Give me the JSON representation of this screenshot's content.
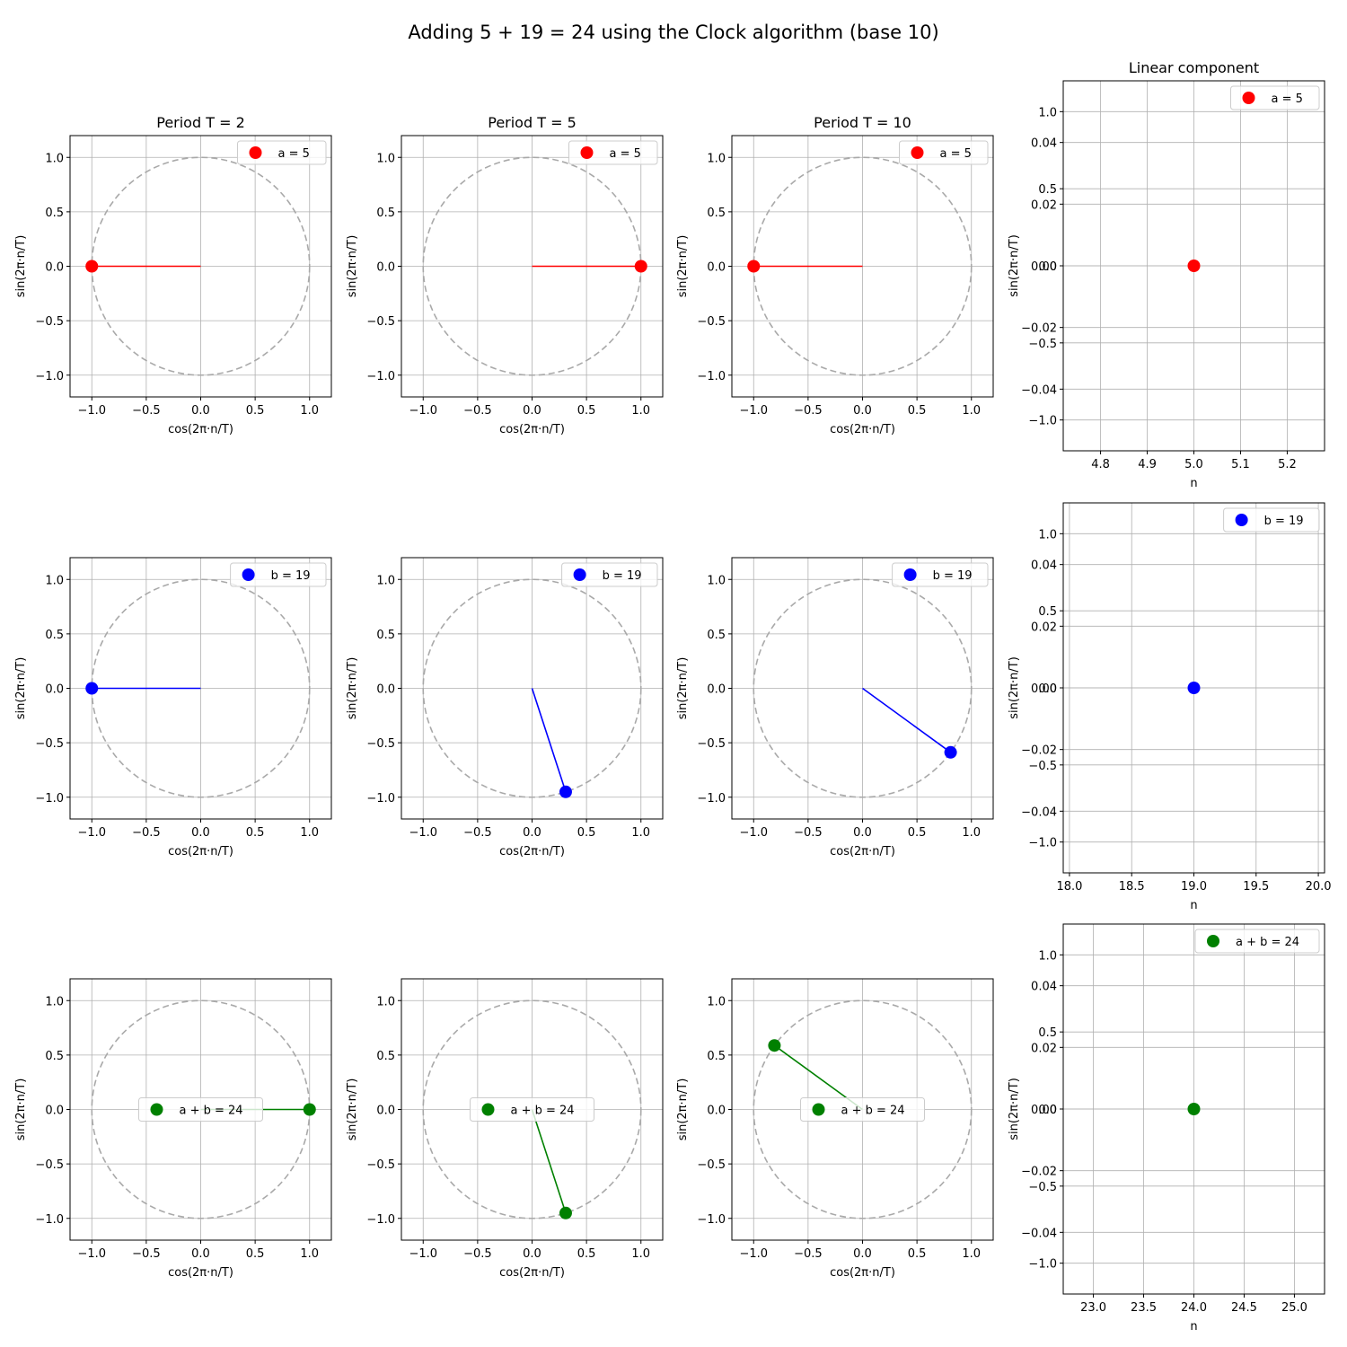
{
  "figure": {
    "title": "Adding 5 + 19 = 24 using the Clock algorithm (base 10)"
  },
  "chart_data": [
    {
      "type": "scatter",
      "title": "Period T = 2",
      "xlabel": "cos(2π·n/T)",
      "ylabel": "sin(2π·n/T)",
      "xlim": [
        -1.2,
        1.2
      ],
      "ylim": [
        -1.2,
        1.2
      ],
      "xticks": [
        -1.0,
        -0.5,
        0.0,
        0.5,
        1.0
      ],
      "yticks": [
        -1.0,
        -0.5,
        0.0,
        0.5,
        1.0
      ],
      "grid": true,
      "unit_circle": true,
      "legend_loc": "upper right",
      "series": [
        {
          "name": "a = 5",
          "color": "#ff0000",
          "x": -1.0,
          "y": 0.0
        }
      ]
    },
    {
      "type": "scatter",
      "title": "Period T = 5",
      "xlabel": "cos(2π·n/T)",
      "ylabel": "sin(2π·n/T)",
      "xlim": [
        -1.2,
        1.2
      ],
      "ylim": [
        -1.2,
        1.2
      ],
      "xticks": [
        -1.0,
        -0.5,
        0.0,
        0.5,
        1.0
      ],
      "yticks": [
        -1.0,
        -0.5,
        0.0,
        0.5,
        1.0
      ],
      "grid": true,
      "unit_circle": true,
      "legend_loc": "upper right",
      "series": [
        {
          "name": "a = 5",
          "color": "#ff0000",
          "x": 1.0,
          "y": 0.0
        }
      ]
    },
    {
      "type": "scatter",
      "title": "Period T = 10",
      "xlabel": "cos(2π·n/T)",
      "ylabel": "sin(2π·n/T)",
      "xlim": [
        -1.2,
        1.2
      ],
      "ylim": [
        -1.2,
        1.2
      ],
      "xticks": [
        -1.0,
        -0.5,
        0.0,
        0.5,
        1.0
      ],
      "yticks": [
        -1.0,
        -0.5,
        0.0,
        0.5,
        1.0
      ],
      "grid": true,
      "unit_circle": true,
      "legend_loc": "upper right",
      "series": [
        {
          "name": "a = 5",
          "color": "#ff0000",
          "x": -1.0,
          "y": 0.0
        }
      ]
    },
    {
      "type": "scatter",
      "title": "Linear component",
      "xlabel": "n",
      "ylabel": "sin(2π·n/T)",
      "xlim": [
        4.72,
        5.28
      ],
      "ylim": [
        -0.06,
        0.06
      ],
      "xticks": [
        4.8,
        4.9,
        5.0,
        5.1,
        5.2
      ],
      "yticks": [
        -0.04,
        -0.02,
        0.0,
        0.02,
        0.04
      ],
      "ghost_ylim": [
        -1.2,
        1.2
      ],
      "ghost_yticks": [
        -1.0,
        -0.5,
        0.0,
        0.5,
        1.0
      ],
      "grid": true,
      "unit_circle": false,
      "legend_loc": "upper right",
      "series": [
        {
          "name": "a = 5",
          "color": "#ff0000",
          "x": 5.0,
          "y": 0.0
        }
      ]
    },
    {
      "type": "scatter",
      "title": "",
      "xlabel": "cos(2π·n/T)",
      "ylabel": "sin(2π·n/T)",
      "xlim": [
        -1.2,
        1.2
      ],
      "ylim": [
        -1.2,
        1.2
      ],
      "xticks": [
        -1.0,
        -0.5,
        0.0,
        0.5,
        1.0
      ],
      "yticks": [
        -1.0,
        -0.5,
        0.0,
        0.5,
        1.0
      ],
      "grid": true,
      "unit_circle": true,
      "legend_loc": "upper right",
      "series": [
        {
          "name": "b = 19",
          "color": "#0000ff",
          "x": -1.0,
          "y": 0.0
        }
      ]
    },
    {
      "type": "scatter",
      "title": "",
      "xlabel": "cos(2π·n/T)",
      "ylabel": "sin(2π·n/T)",
      "xlim": [
        -1.2,
        1.2
      ],
      "ylim": [
        -1.2,
        1.2
      ],
      "xticks": [
        -1.0,
        -0.5,
        0.0,
        0.5,
        1.0
      ],
      "yticks": [
        -1.0,
        -0.5,
        0.0,
        0.5,
        1.0
      ],
      "grid": true,
      "unit_circle": true,
      "legend_loc": "upper right",
      "series": [
        {
          "name": "b = 19",
          "color": "#0000ff",
          "x": 0.309,
          "y": -0.951
        }
      ]
    },
    {
      "type": "scatter",
      "title": "",
      "xlabel": "cos(2π·n/T)",
      "ylabel": "sin(2π·n/T)",
      "xlim": [
        -1.2,
        1.2
      ],
      "ylim": [
        -1.2,
        1.2
      ],
      "xticks": [
        -1.0,
        -0.5,
        0.0,
        0.5,
        1.0
      ],
      "yticks": [
        -1.0,
        -0.5,
        0.0,
        0.5,
        1.0
      ],
      "grid": true,
      "unit_circle": true,
      "legend_loc": "upper right",
      "series": [
        {
          "name": "b = 19",
          "color": "#0000ff",
          "x": 0.809,
          "y": -0.588
        }
      ]
    },
    {
      "type": "scatter",
      "title": "",
      "xlabel": "n",
      "ylabel": "sin(2π·n/T)",
      "xlim": [
        17.95,
        20.05
      ],
      "ylim": [
        -0.06,
        0.06
      ],
      "xticks": [
        18.0,
        18.5,
        19.0,
        19.5,
        20.0
      ],
      "yticks": [
        -0.04,
        -0.02,
        0.0,
        0.02,
        0.04
      ],
      "ghost_ylim": [
        -1.2,
        1.2
      ],
      "ghost_yticks": [
        -1.0,
        -0.5,
        0.0,
        0.5,
        1.0
      ],
      "grid": true,
      "unit_circle": false,
      "legend_loc": "upper right",
      "series": [
        {
          "name": "b = 19",
          "color": "#0000ff",
          "x": 19.0,
          "y": 0.0
        }
      ]
    },
    {
      "type": "scatter",
      "title": "",
      "xlabel": "cos(2π·n/T)",
      "ylabel": "sin(2π·n/T)",
      "xlim": [
        -1.2,
        1.2
      ],
      "ylim": [
        -1.2,
        1.2
      ],
      "xticks": [
        -1.0,
        -0.5,
        0.0,
        0.5,
        1.0
      ],
      "yticks": [
        -1.0,
        -0.5,
        0.0,
        0.5,
        1.0
      ],
      "grid": true,
      "unit_circle": true,
      "legend_loc": "center",
      "series": [
        {
          "name": "a + b = 24",
          "color": "#008000",
          "x": 1.0,
          "y": 0.0
        }
      ]
    },
    {
      "type": "scatter",
      "title": "",
      "xlabel": "cos(2π·n/T)",
      "ylabel": "sin(2π·n/T)",
      "xlim": [
        -1.2,
        1.2
      ],
      "ylim": [
        -1.2,
        1.2
      ],
      "xticks": [
        -1.0,
        -0.5,
        0.0,
        0.5,
        1.0
      ],
      "yticks": [
        -1.0,
        -0.5,
        0.0,
        0.5,
        1.0
      ],
      "grid": true,
      "unit_circle": true,
      "legend_loc": "center",
      "series": [
        {
          "name": "a + b = 24",
          "color": "#008000",
          "x": 0.309,
          "y": -0.951
        }
      ]
    },
    {
      "type": "scatter",
      "title": "",
      "xlabel": "cos(2π·n/T)",
      "ylabel": "sin(2π·n/T)",
      "xlim": [
        -1.2,
        1.2
      ],
      "ylim": [
        -1.2,
        1.2
      ],
      "xticks": [
        -1.0,
        -0.5,
        0.0,
        0.5,
        1.0
      ],
      "yticks": [
        -1.0,
        -0.5,
        0.0,
        0.5,
        1.0
      ],
      "grid": true,
      "unit_circle": true,
      "legend_loc": "center",
      "series": [
        {
          "name": "a + b = 24",
          "color": "#008000",
          "x": -0.809,
          "y": 0.588
        }
      ]
    },
    {
      "type": "scatter",
      "title": "",
      "xlabel": "n",
      "ylabel": "sin(2π·n/T)",
      "xlim": [
        22.7,
        25.3
      ],
      "ylim": [
        -0.06,
        0.06
      ],
      "xticks": [
        23.0,
        23.5,
        24.0,
        24.5,
        25.0
      ],
      "yticks": [
        -0.04,
        -0.02,
        0.0,
        0.02,
        0.04
      ],
      "ghost_ylim": [
        -1.2,
        1.2
      ],
      "ghost_yticks": [
        -1.0,
        -0.5,
        0.0,
        0.5,
        1.0
      ],
      "grid": true,
      "unit_circle": false,
      "legend_loc": "upper right",
      "series": [
        {
          "name": "a + b = 24",
          "color": "#008000",
          "x": 24.0,
          "y": 0.0
        }
      ]
    }
  ]
}
